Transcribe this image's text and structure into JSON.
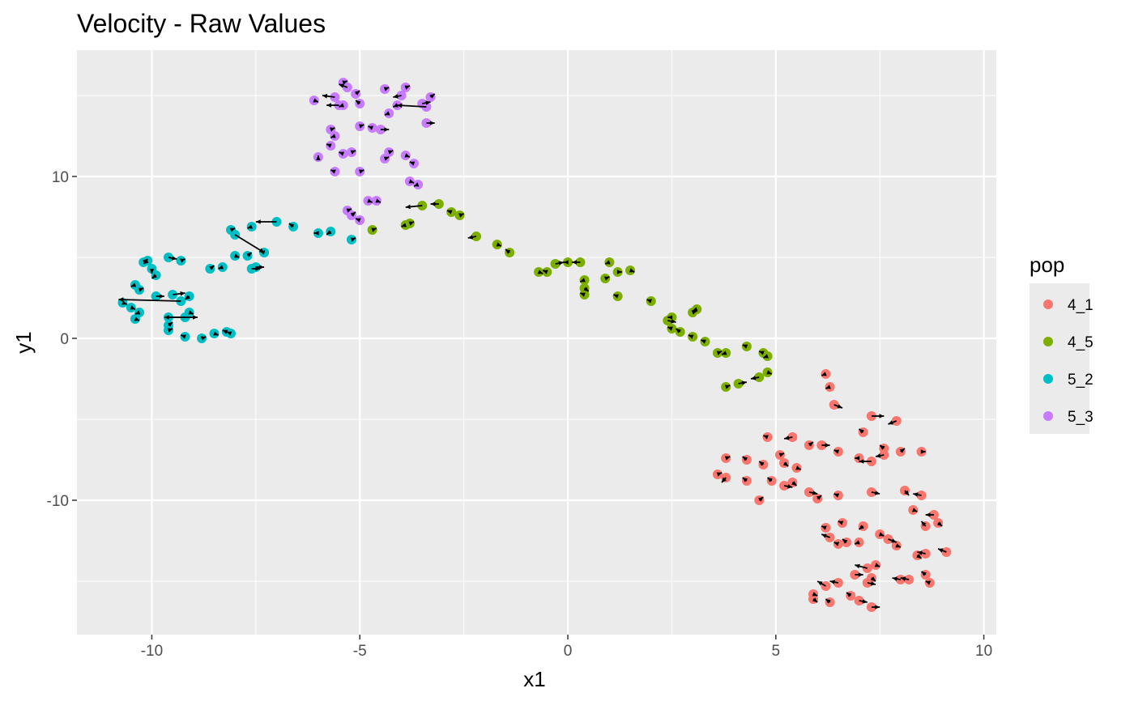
{
  "chart_data": {
    "type": "scatter",
    "title": "Velocity - Raw Values",
    "xlabel": "x1",
    "ylabel": "y1",
    "xlim": [
      -11.8,
      10.3
    ],
    "ylim": [
      -18.3,
      17.8
    ],
    "x_ticks": [
      -10,
      -5,
      0,
      5,
      10
    ],
    "x_tick_labels": [
      "-10",
      "-5",
      "0",
      "5",
      "10"
    ],
    "y_ticks": [
      -10,
      0,
      10
    ],
    "y_tick_labels": [
      "-10",
      "0",
      "10"
    ],
    "grid": true,
    "legend": {
      "title": "pop",
      "position": "right"
    },
    "series": [
      {
        "name": "4_1",
        "color": "#F8766D",
        "points": [
          [
            6.2,
            -2.2,
            6.1,
            -2.3
          ],
          [
            6.3,
            -3.0,
            6.2,
            -3.1
          ],
          [
            6.4,
            -4.1,
            6.6,
            -4.3
          ],
          [
            7.3,
            -4.8,
            7.6,
            -4.8
          ],
          [
            7.9,
            -5.1,
            7.7,
            -5.3
          ],
          [
            4.8,
            -6.1,
            4.7,
            -6.0
          ],
          [
            5.4,
            -6.1,
            5.2,
            -6.2
          ],
          [
            5.8,
            -6.6,
            5.9,
            -6.4
          ],
          [
            6.1,
            -6.6,
            6.3,
            -6.6
          ],
          [
            6.5,
            -7.0,
            6.4,
            -6.9
          ],
          [
            7.1,
            -5.8,
            7.0,
            -5.6
          ],
          [
            7.6,
            -6.8,
            7.5,
            -6.6
          ],
          [
            8.0,
            -7.0,
            8.1,
            -6.8
          ],
          [
            8.5,
            -7.0,
            8.6,
            -7.0
          ],
          [
            7.6,
            -7.2,
            7.4,
            -7.3
          ],
          [
            7.3,
            -7.6,
            7.0,
            -7.6
          ],
          [
            7.0,
            -7.4,
            6.9,
            -7.4
          ],
          [
            3.8,
            -7.4,
            3.9,
            -7.3
          ],
          [
            4.3,
            -7.5,
            4.2,
            -7.3
          ],
          [
            4.7,
            -7.8,
            4.6,
            -7.6
          ],
          [
            5.1,
            -7.2,
            5.2,
            -7.1
          ],
          [
            5.2,
            -7.7,
            5.3,
            -7.9
          ],
          [
            5.5,
            -8.0,
            5.6,
            -8.1
          ],
          [
            3.6,
            -8.4,
            3.7,
            -8.3
          ],
          [
            3.8,
            -8.6,
            3.7,
            -8.9
          ],
          [
            4.3,
            -8.8,
            4.2,
            -8.6
          ],
          [
            4.9,
            -8.8,
            4.8,
            -8.6
          ],
          [
            5.2,
            -9.1,
            5.4,
            -9.2
          ],
          [
            5.4,
            -8.9,
            5.5,
            -9.1
          ],
          [
            5.8,
            -9.5,
            6.0,
            -9.6
          ],
          [
            6.0,
            -9.9,
            6.1,
            -9.7
          ],
          [
            6.5,
            -9.7,
            6.4,
            -9.6
          ],
          [
            7.3,
            -9.5,
            7.5,
            -9.6
          ],
          [
            8.1,
            -9.4,
            8.2,
            -9.7
          ],
          [
            8.5,
            -9.7,
            8.3,
            -9.6
          ],
          [
            4.6,
            -10.0,
            4.7,
            -9.8
          ],
          [
            8.3,
            -10.6,
            8.4,
            -10.7
          ],
          [
            8.8,
            -10.9,
            8.6,
            -10.9
          ],
          [
            8.9,
            -11.4,
            9.0,
            -11.6
          ],
          [
            8.6,
            -11.6,
            8.5,
            -11.3
          ],
          [
            6.6,
            -11.4,
            6.5,
            -11.3
          ],
          [
            6.2,
            -11.7,
            6.1,
            -11.6
          ],
          [
            6.3,
            -12.3,
            6.1,
            -12.1
          ],
          [
            6.7,
            -12.6,
            6.6,
            -12.4
          ],
          [
            7.1,
            -11.6,
            7.0,
            -11.8
          ],
          [
            7.5,
            -12.1,
            7.6,
            -12.2
          ],
          [
            7.7,
            -12.4,
            7.9,
            -12.6
          ],
          [
            7.9,
            -12.8,
            8.0,
            -12.9
          ],
          [
            6.5,
            -12.7,
            6.4,
            -12.6
          ],
          [
            7.0,
            -12.6,
            6.9,
            -12.7
          ],
          [
            8.4,
            -13.4,
            8.5,
            -13.6
          ],
          [
            8.6,
            -13.3,
            8.4,
            -13.2
          ],
          [
            9.1,
            -13.2,
            8.9,
            -13.0
          ],
          [
            7.4,
            -14.0,
            7.5,
            -14.1
          ],
          [
            7.2,
            -14.2,
            6.9,
            -14.0
          ],
          [
            6.9,
            -14.6,
            7.1,
            -14.6
          ],
          [
            8.0,
            -14.9,
            7.8,
            -14.8
          ],
          [
            8.2,
            -14.9,
            8.0,
            -14.8
          ],
          [
            8.6,
            -14.6,
            8.5,
            -14.4
          ],
          [
            8.7,
            -15.1,
            8.6,
            -15.0
          ],
          [
            7.3,
            -14.8,
            7.4,
            -15.0
          ],
          [
            7.2,
            -15.1,
            7.4,
            -15.2
          ],
          [
            6.5,
            -15.1,
            6.3,
            -15.0
          ],
          [
            6.2,
            -15.3,
            6.0,
            -15.0
          ],
          [
            5.9,
            -15.8,
            6.0,
            -15.9
          ],
          [
            5.9,
            -16.1,
            6.0,
            -16.3
          ],
          [
            6.3,
            -16.3,
            6.2,
            -16.1
          ],
          [
            6.8,
            -15.9,
            6.7,
            -15.7
          ],
          [
            7.0,
            -16.2,
            7.2,
            -16.3
          ],
          [
            7.3,
            -16.6,
            7.5,
            -16.6
          ]
        ]
      },
      {
        "name": "4_5",
        "color": "#7CAE00",
        "points": [
          [
            -3.1,
            8.3,
            -3.3,
            8.3
          ],
          [
            -3.5,
            8.2,
            -3.9,
            8.1
          ],
          [
            -2.8,
            7.8,
            -2.9,
            7.9
          ],
          [
            -2.6,
            7.6,
            -2.5,
            7.7
          ],
          [
            -3.9,
            7.0,
            -4.0,
            6.9
          ],
          [
            -3.8,
            7.1,
            -3.7,
            7.2
          ],
          [
            -4.7,
            6.7,
            -4.6,
            6.8
          ],
          [
            -2.2,
            6.3,
            -2.4,
            6.2
          ],
          [
            -1.7,
            5.8,
            -1.6,
            5.7
          ],
          [
            -1.4,
            5.3,
            -1.5,
            5.5
          ],
          [
            -0.7,
            4.1,
            -0.6,
            4.0
          ],
          [
            -0.5,
            4.1,
            -0.6,
            4.2
          ],
          [
            -0.3,
            4.6,
            -0.1,
            4.7
          ],
          [
            0.3,
            4.7,
            0.1,
            4.7
          ],
          [
            0.0,
            4.7,
            -0.1,
            4.7
          ],
          [
            0.4,
            3.6,
            0.3,
            3.5
          ],
          [
            0.4,
            3.1,
            0.5,
            2.9
          ],
          [
            0.4,
            2.7,
            0.3,
            2.8
          ],
          [
            0.9,
            3.7,
            1.0,
            3.8
          ],
          [
            1.0,
            4.7,
            0.9,
            4.6
          ],
          [
            1.2,
            4.1,
            1.3,
            4.1
          ],
          [
            1.5,
            4.2,
            1.6,
            4.1
          ],
          [
            1.2,
            2.6,
            1.1,
            2.7
          ],
          [
            2.0,
            2.3,
            1.9,
            2.4
          ],
          [
            2.4,
            1.1,
            2.6,
            1.0
          ],
          [
            2.5,
            1.3,
            2.4,
            1.3
          ],
          [
            2.5,
            0.6,
            2.4,
            0.7
          ],
          [
            2.7,
            0.4,
            2.6,
            0.6
          ],
          [
            3.0,
            1.6,
            3.1,
            1.7
          ],
          [
            3.1,
            1.8,
            3.0,
            1.7
          ],
          [
            3.0,
            0.1,
            2.9,
            0.2
          ],
          [
            3.3,
            -0.2,
            3.2,
            -0.1
          ],
          [
            3.6,
            -0.9,
            3.7,
            -0.8
          ],
          [
            3.8,
            -0.9,
            3.7,
            -1.0
          ],
          [
            4.3,
            -0.5,
            4.2,
            -0.4
          ],
          [
            4.7,
            -0.9,
            4.6,
            -0.8
          ],
          [
            4.8,
            -1.1,
            4.7,
            -1.2
          ],
          [
            4.8,
            -2.1,
            4.9,
            -2.2
          ],
          [
            4.6,
            -2.4,
            4.4,
            -2.5
          ],
          [
            4.1,
            -2.8,
            4.3,
            -2.7
          ],
          [
            3.8,
            -3.0,
            3.9,
            -2.9
          ]
        ]
      },
      {
        "name": "5_2",
        "color": "#00BFC4",
        "points": [
          [
            -7.0,
            7.2,
            -7.5,
            7.2
          ],
          [
            -7.6,
            6.9,
            -7.7,
            6.8
          ],
          [
            -8.1,
            6.7,
            -8.0,
            6.8
          ],
          [
            -8.0,
            6.4,
            -7.3,
            5.3
          ],
          [
            -6.6,
            6.9,
            -6.7,
            7.1
          ],
          [
            -6.0,
            6.5,
            -6.1,
            6.5
          ],
          [
            -5.7,
            6.6,
            -5.8,
            6.4
          ],
          [
            -5.2,
            6.1,
            -5.1,
            6.2
          ],
          [
            -8.0,
            5.1,
            -7.9,
            5.0
          ],
          [
            -7.7,
            5.1,
            -7.6,
            5.3
          ],
          [
            -7.3,
            5.3,
            -7.4,
            5.4
          ],
          [
            -7.6,
            4.3,
            -7.4,
            4.3
          ],
          [
            -7.5,
            4.4,
            -7.3,
            4.4
          ],
          [
            -8.3,
            4.4,
            -8.4,
            4.3
          ],
          [
            -8.6,
            4.3,
            -8.5,
            4.5
          ],
          [
            -9.3,
            4.8,
            -9.2,
            4.9
          ],
          [
            -9.6,
            5.0,
            -9.4,
            4.9
          ],
          [
            -10.1,
            4.8,
            -10.2,
            4.6
          ],
          [
            -10.2,
            4.7,
            -10.1,
            4.9
          ],
          [
            -10.0,
            4.3,
            -10.0,
            4.0
          ],
          [
            -9.9,
            3.9,
            -10.0,
            3.7
          ],
          [
            -10.4,
            3.3,
            -10.5,
            3.2
          ],
          [
            -10.3,
            3.0,
            -10.2,
            3.1
          ],
          [
            -9.3,
            2.3,
            -10.8,
            2.4
          ],
          [
            -9.9,
            2.6,
            -9.7,
            2.6
          ],
          [
            -9.5,
            2.7,
            -9.2,
            2.8
          ],
          [
            -9.1,
            2.6,
            -9.2,
            2.4
          ],
          [
            -10.7,
            2.2,
            -10.6,
            2.1
          ],
          [
            -10.5,
            1.9,
            -10.4,
            1.8
          ],
          [
            -10.3,
            1.6,
            -10.4,
            1.5
          ],
          [
            -10.4,
            1.2,
            -10.3,
            1.1
          ],
          [
            -9.6,
            1.3,
            -8.9,
            1.3
          ],
          [
            -9.2,
            1.3,
            -9.7,
            1.3
          ],
          [
            -9.1,
            1.6,
            -9.0,
            1.5
          ],
          [
            -9.6,
            0.8,
            -9.5,
            1.0
          ],
          [
            -9.6,
            0.5,
            -9.5,
            0.6
          ],
          [
            -9.2,
            0.1,
            -9.3,
            0.2
          ],
          [
            -8.8,
            0.0,
            -8.7,
            0.1
          ],
          [
            -8.5,
            0.3,
            -8.4,
            0.2
          ],
          [
            -8.2,
            0.4,
            -8.3,
            0.5
          ],
          [
            -8.1,
            0.3,
            -8.2,
            0.4
          ]
        ]
      },
      {
        "name": "5_3",
        "color": "#C77CFF",
        "points": [
          [
            -5.4,
            15.8,
            -5.3,
            15.9
          ],
          [
            -5.3,
            15.5,
            -5.5,
            15.7
          ],
          [
            -5.6,
            14.9,
            -5.9,
            15.0
          ],
          [
            -5.1,
            15.1,
            -5.0,
            15.3
          ],
          [
            -5.5,
            14.4,
            -5.8,
            14.4
          ],
          [
            -5.4,
            14.4,
            -5.5,
            14.3
          ],
          [
            -6.1,
            14.7,
            -6.0,
            14.6
          ],
          [
            -5.0,
            14.5,
            -5.1,
            14.7
          ],
          [
            -4.4,
            15.4,
            -4.3,
            15.5
          ],
          [
            -4.0,
            15.0,
            -4.2,
            14.9
          ],
          [
            -3.9,
            15.5,
            -3.8,
            15.6
          ],
          [
            -3.3,
            14.9,
            -3.2,
            15.1
          ],
          [
            -3.4,
            14.3,
            -4.1,
            14.4
          ],
          [
            -3.5,
            14.5,
            -3.3,
            14.6
          ],
          [
            -4.1,
            14.4,
            -4.2,
            14.3
          ],
          [
            -4.3,
            13.9,
            -4.4,
            13.8
          ],
          [
            -5.7,
            12.9,
            -5.6,
            13.0
          ],
          [
            -5.0,
            13.1,
            -4.9,
            13.2
          ],
          [
            -4.7,
            13.0,
            -4.8,
            13.1
          ],
          [
            -4.5,
            12.9,
            -4.3,
            12.9
          ],
          [
            -3.4,
            13.3,
            -3.2,
            13.3
          ],
          [
            -5.6,
            12.5,
            -5.7,
            12.4
          ],
          [
            -5.7,
            11.9,
            -5.8,
            12.0
          ],
          [
            -5.4,
            11.4,
            -5.5,
            11.5
          ],
          [
            -5.2,
            11.5,
            -5.1,
            11.6
          ],
          [
            -4.3,
            11.5,
            -4.2,
            11.6
          ],
          [
            -4.4,
            11.1,
            -4.3,
            11.2
          ],
          [
            -3.9,
            11.3,
            -3.8,
            11.2
          ],
          [
            -3.7,
            10.8,
            -3.8,
            10.9
          ],
          [
            -6.0,
            11.2,
            -6.0,
            11.3
          ],
          [
            -5.6,
            10.3,
            -5.7,
            10.4
          ],
          [
            -5.0,
            10.3,
            -4.9,
            10.4
          ],
          [
            -3.8,
            9.7,
            -3.7,
            9.6
          ],
          [
            -3.6,
            9.5,
            -3.7,
            9.4
          ],
          [
            -4.8,
            8.5,
            -4.7,
            8.4
          ],
          [
            -4.6,
            8.5,
            -4.5,
            8.4
          ],
          [
            -5.3,
            7.9,
            -5.2,
            8.0
          ],
          [
            -5.2,
            7.6,
            -5.1,
            7.8
          ],
          [
            -5.0,
            7.3,
            -5.1,
            7.4
          ]
        ]
      }
    ]
  }
}
